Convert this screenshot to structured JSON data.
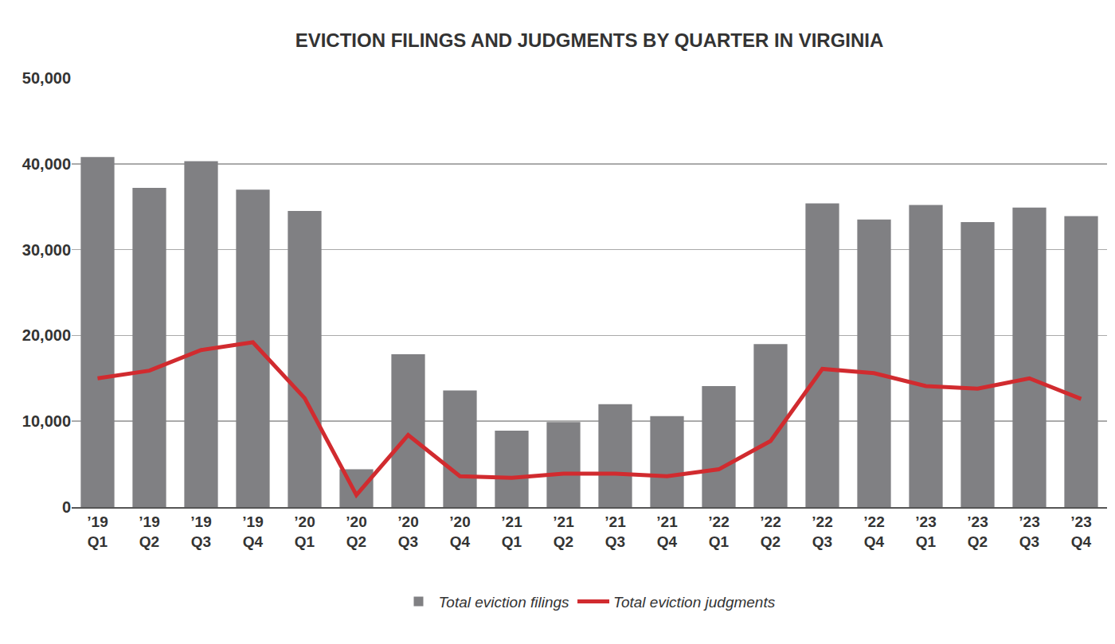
{
  "chart_data": {
    "type": "bar",
    "title": "EVICTION FILINGS AND JUDGMENTS BY QUARTER IN VIRGINIA",
    "categories": [
      "’19\nQ1",
      "’19\nQ2",
      "’19\nQ3",
      "’19\nQ4",
      "’20\nQ1",
      "’20\nQ2",
      "’20\nQ3",
      "’20\nQ4",
      "’21\nQ1",
      "’21\nQ2",
      "’21\nQ3",
      "’21\nQ4",
      "’22\nQ1",
      "’22\nQ2",
      "’22\nQ3",
      "’22\nQ4",
      "’23\nQ1",
      "’23\nQ2",
      "’23\nQ3",
      "’23\nQ4"
    ],
    "series": [
      {
        "name": "Total eviction filings",
        "type": "bar",
        "color": "#808083",
        "values": [
          40800,
          37200,
          40300,
          37000,
          34500,
          4400,
          17800,
          13600,
          8900,
          9900,
          12000,
          10600,
          14100,
          19000,
          35400,
          33500,
          35200,
          33200,
          34900,
          33900
        ]
      },
      {
        "name": "Total eviction judgments",
        "type": "line",
        "color": "#d12b2f",
        "values": [
          15000,
          15900,
          18300,
          19200,
          12700,
          1400,
          8400,
          3600,
          3400,
          3900,
          3900,
          3600,
          4400,
          7700,
          16100,
          15600,
          14100,
          13800,
          15000,
          12600
        ]
      }
    ],
    "ylim": [
      0,
      50000
    ],
    "yticks": [
      0,
      {
        "value": 10000,
        "label": "10,000"
      },
      {
        "value": 20000,
        "label": "20,000"
      },
      {
        "value": 30000,
        "label": "30,000"
      },
      {
        "value": 40000,
        "label": "40,000"
      },
      {
        "value": 50000,
        "label": "50,000"
      }
    ],
    "grid": true,
    "legend": "bottom"
  }
}
